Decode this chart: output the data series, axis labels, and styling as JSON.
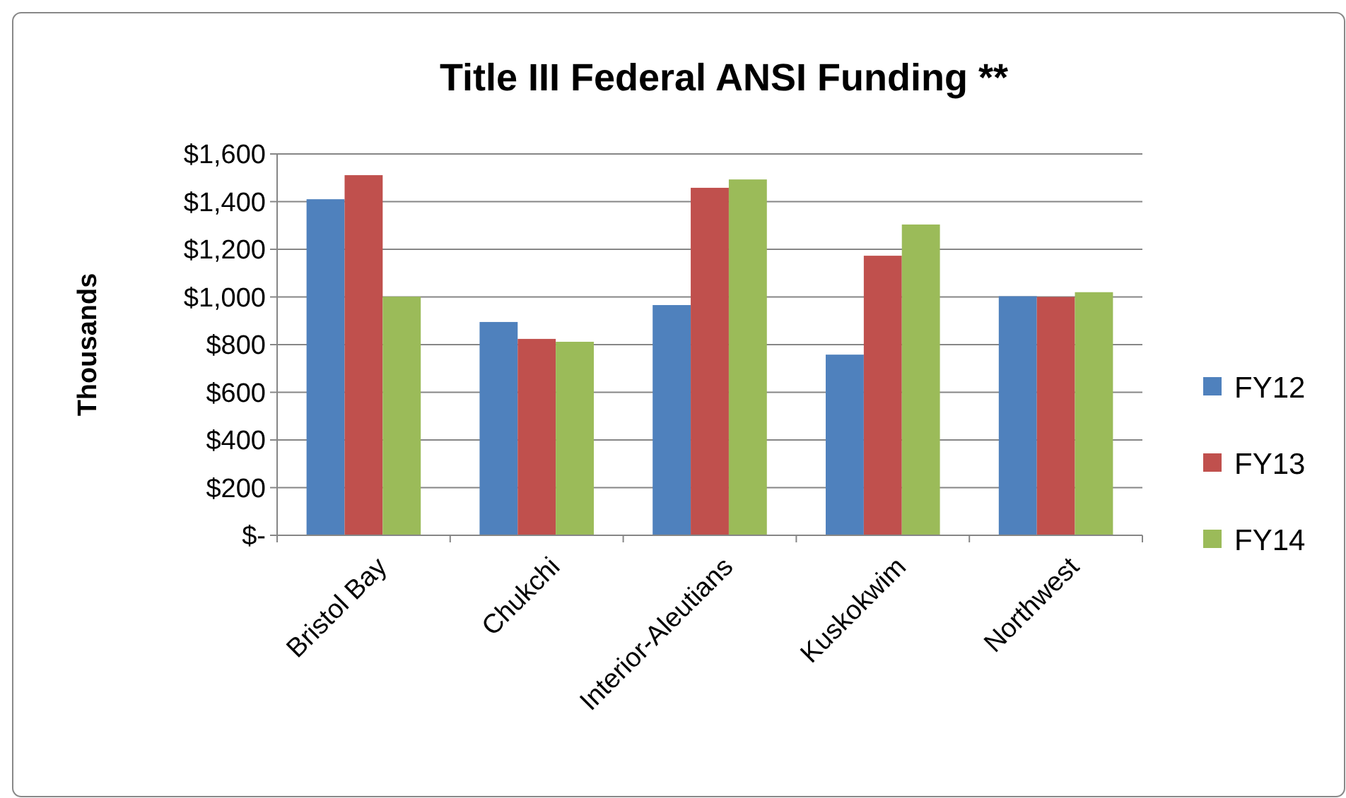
{
  "chart_data": {
    "type": "bar",
    "title": "Title III Federal ANSI Funding **",
    "ylabel": "Thousands",
    "categories": [
      "Bristol Bay",
      "Chukchi",
      "Interior-Aleutians",
      "Kuskokwim",
      "Northwest"
    ],
    "series": [
      {
        "name": "FY12",
        "color": "#4f81bd",
        "values": [
          1410,
          895,
          966,
          758,
          1003
        ]
      },
      {
        "name": "FY13",
        "color": "#c0504d",
        "values": [
          1511,
          824,
          1458,
          1173,
          1000
        ]
      },
      {
        "name": "FY14",
        "color": "#9bbb59",
        "values": [
          1001,
          812,
          1493,
          1304,
          1020
        ]
      }
    ],
    "ylim": [
      0,
      1600
    ],
    "yticks": [
      {
        "value": 0,
        "label": "$-"
      },
      {
        "value": 200,
        "label": "$200"
      },
      {
        "value": 400,
        "label": "$400"
      },
      {
        "value": 600,
        "label": "$600"
      },
      {
        "value": 800,
        "label": "$800"
      },
      {
        "value": 1000,
        "label": "$1,000"
      },
      {
        "value": 1200,
        "label": "$1,200"
      },
      {
        "value": 1400,
        "label": "$1,400"
      },
      {
        "value": 1600,
        "label": "$1,600"
      }
    ],
    "grid": "y",
    "legend": "right"
  }
}
